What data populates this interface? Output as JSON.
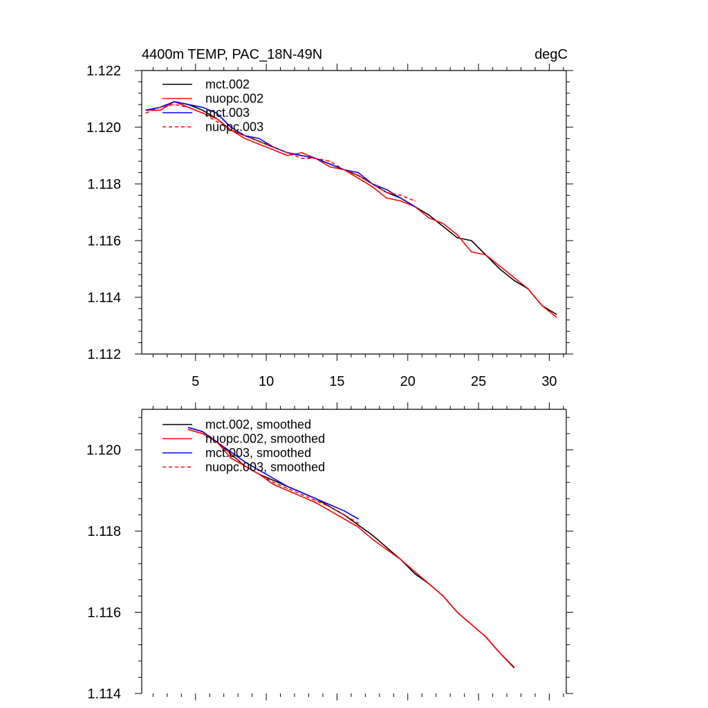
{
  "chart_data": [
    {
      "type": "line",
      "title_left": "4400m TEMP, PAC_18N-49N",
      "title_right": "degC",
      "xlabel": "",
      "ylabel": "",
      "xlim": [
        1.2,
        31.2
      ],
      "ylim": [
        1.112,
        1.122
      ],
      "xticks": [
        5,
        10,
        15,
        20,
        25,
        30
      ],
      "xtick_labels": [
        "5",
        "10",
        "15",
        "20",
        "25",
        "30"
      ],
      "yticks": [
        1.112,
        1.114,
        1.116,
        1.118,
        1.12,
        1.122
      ],
      "ytick_labels": [
        "1.112",
        "1.114",
        "1.116",
        "1.118",
        "1.120",
        "1.122"
      ],
      "legend_position": "top-left",
      "series": [
        {
          "name": "mct.002",
          "color": "#000000",
          "dash": "solid",
          "x": [
            1.5,
            2.5,
            3.5,
            4.5,
            5.5,
            6.5,
            7.5,
            8.5,
            9.5,
            10.5,
            11.5,
            12.5,
            13.5,
            14.5,
            15.5,
            16.5,
            17.5,
            18.5,
            19.5,
            20.5,
            21.5,
            22.5,
            23.5,
            24.5,
            25.5,
            26.5,
            27.5,
            28.5,
            29.5,
            30.5
          ],
          "values": [
            1.1206,
            1.1207,
            1.1209,
            1.1208,
            1.1206,
            1.1203,
            1.1199,
            1.1197,
            1.1195,
            1.1193,
            1.1191,
            1.119,
            1.1189,
            1.1187,
            1.1185,
            1.1183,
            1.118,
            1.1177,
            1.1175,
            1.1172,
            1.1169,
            1.1165,
            1.1161,
            1.116,
            1.1155,
            1.115,
            1.1146,
            1.1143,
            1.1137,
            1.1134
          ]
        },
        {
          "name": "nuopc.002",
          "color": "#ff0000",
          "dash": "solid",
          "x": [
            1.5,
            2.5,
            3.5,
            4.5,
            5.5,
            6.5,
            7.5,
            8.5,
            9.5,
            10.5,
            11.5,
            12.5,
            13.5,
            14.5,
            15.5,
            16.5,
            17.5,
            18.5,
            19.5,
            20.5,
            21.5,
            22.5,
            23.5,
            24.5,
            25.5,
            26.5,
            27.5,
            28.5,
            29.5,
            30.5
          ],
          "values": [
            1.1206,
            1.1206,
            1.1209,
            1.1207,
            1.1205,
            1.1203,
            1.1199,
            1.1196,
            1.1194,
            1.1192,
            1.119,
            1.1191,
            1.1189,
            1.1186,
            1.1185,
            1.1182,
            1.1179,
            1.1175,
            1.1174,
            1.1172,
            1.1168,
            1.1166,
            1.1162,
            1.1156,
            1.1155,
            1.1151,
            1.1147,
            1.1143,
            1.1137,
            1.1133
          ]
        },
        {
          "name": "mct.003",
          "color": "#0000ff",
          "dash": "solid",
          "x": [
            1.5,
            2.5,
            3.5,
            4.5,
            5.5,
            6.5,
            7.5,
            8.5,
            9.5,
            10.5,
            11.5,
            12.5,
            13.5,
            14.5,
            15.5,
            16.5,
            17.5,
            18.5,
            19.5,
            20.5
          ],
          "values": [
            1.1206,
            1.1207,
            1.1209,
            1.1208,
            1.1207,
            1.1205,
            1.12,
            1.1197,
            1.1196,
            1.1193,
            1.1191,
            1.119,
            1.1189,
            1.1187,
            1.1185,
            1.1184,
            1.118,
            1.1178,
            1.1175,
            1.1172
          ]
        },
        {
          "name": "nuopc.003",
          "color": "#ff0000",
          "dash": "dashed",
          "x": [
            1.5,
            2.5,
            3.5,
            4.5,
            5.5,
            6.5,
            7.5,
            8.5,
            9.5,
            10.5,
            11.5,
            12.5,
            13.5,
            14.5,
            15.5,
            16.5,
            17.5,
            18.5,
            19.5,
            20.5
          ],
          "values": [
            1.1205,
            1.1207,
            1.1208,
            1.1207,
            1.1205,
            1.1202,
            1.1199,
            1.1197,
            1.1195,
            1.1193,
            1.1191,
            1.1189,
            1.1189,
            1.1188,
            1.1185,
            1.1183,
            1.118,
            1.1177,
            1.1176,
            1.1174
          ]
        }
      ]
    },
    {
      "type": "line",
      "title_left": "",
      "title_right": "",
      "xlabel": "",
      "ylabel": "",
      "xlim": [
        1.2,
        31.2
      ],
      "ylim": [
        1.114,
        1.121
      ],
      "xticks": [
        5,
        10,
        15,
        20,
        25,
        30
      ],
      "xtick_labels": [],
      "yticks": [
        1.114,
        1.116,
        1.118,
        1.12
      ],
      "ytick_labels": [
        "1.114",
        "1.116",
        "1.118",
        "1.120"
      ],
      "legend_position": "top-left",
      "series": [
        {
          "name": "mct.002, smoothed",
          "color": "#000000",
          "dash": "solid",
          "x": [
            4.5,
            5.5,
            6.5,
            7.5,
            8.5,
            9.5,
            10.5,
            11.5,
            12.5,
            13.5,
            14.5,
            15.5,
            16.5,
            17.5,
            18.5,
            19.5,
            20.5,
            21.5,
            22.5,
            23.5,
            24.5,
            25.5,
            26.5,
            27.5
          ],
          "values": [
            1.12055,
            1.12045,
            1.1202,
            1.1199,
            1.1196,
            1.1194,
            1.11925,
            1.1191,
            1.11895,
            1.1188,
            1.1186,
            1.1184,
            1.11815,
            1.1179,
            1.1176,
            1.1173,
            1.11695,
            1.1167,
            1.1164,
            1.116,
            1.1157,
            1.1154,
            1.115,
            1.11465
          ]
        },
        {
          "name": "nuopc.002, smoothed",
          "color": "#ff0000",
          "dash": "solid",
          "x": [
            4.5,
            5.5,
            6.5,
            7.5,
            8.5,
            9.5,
            10.5,
            11.5,
            12.5,
            13.5,
            14.5,
            15.5,
            16.5,
            17.5,
            18.5,
            19.5,
            20.5,
            21.5,
            22.5,
            23.5,
            24.5,
            25.5,
            26.5,
            27.5
          ],
          "values": [
            1.1205,
            1.1204,
            1.1202,
            1.1198,
            1.1196,
            1.1194,
            1.11915,
            1.119,
            1.11885,
            1.1187,
            1.1185,
            1.1183,
            1.1181,
            1.1178,
            1.11755,
            1.1173,
            1.117,
            1.1167,
            1.1164,
            1.116,
            1.1157,
            1.1154,
            1.115,
            1.11463
          ]
        },
        {
          "name": "mct.003, smoothed",
          "color": "#0000ff",
          "dash": "solid",
          "x": [
            4.5,
            5.5,
            6.5,
            7.5,
            8.5,
            9.5,
            10.5,
            11.5,
            12.5,
            13.5,
            14.5,
            15.5,
            16.5
          ],
          "values": [
            1.12055,
            1.12045,
            1.1202,
            1.11995,
            1.1197,
            1.1195,
            1.1193,
            1.1191,
            1.11895,
            1.1188,
            1.11865,
            1.1185,
            1.1183
          ]
        },
        {
          "name": "nuopc.003, smoothed",
          "color": "#ff0000",
          "dash": "dashed",
          "x": [
            4.5,
            5.5,
            6.5,
            7.5,
            8.5,
            9.5,
            10.5,
            11.5,
            12.5,
            13.5,
            14.5,
            15.5,
            16.5
          ],
          "values": [
            1.1205,
            1.1204,
            1.1202,
            1.1199,
            1.1196,
            1.1194,
            1.1192,
            1.11905,
            1.1189,
            1.11875,
            1.1186,
            1.1184,
            1.1182
          ]
        }
      ]
    }
  ]
}
